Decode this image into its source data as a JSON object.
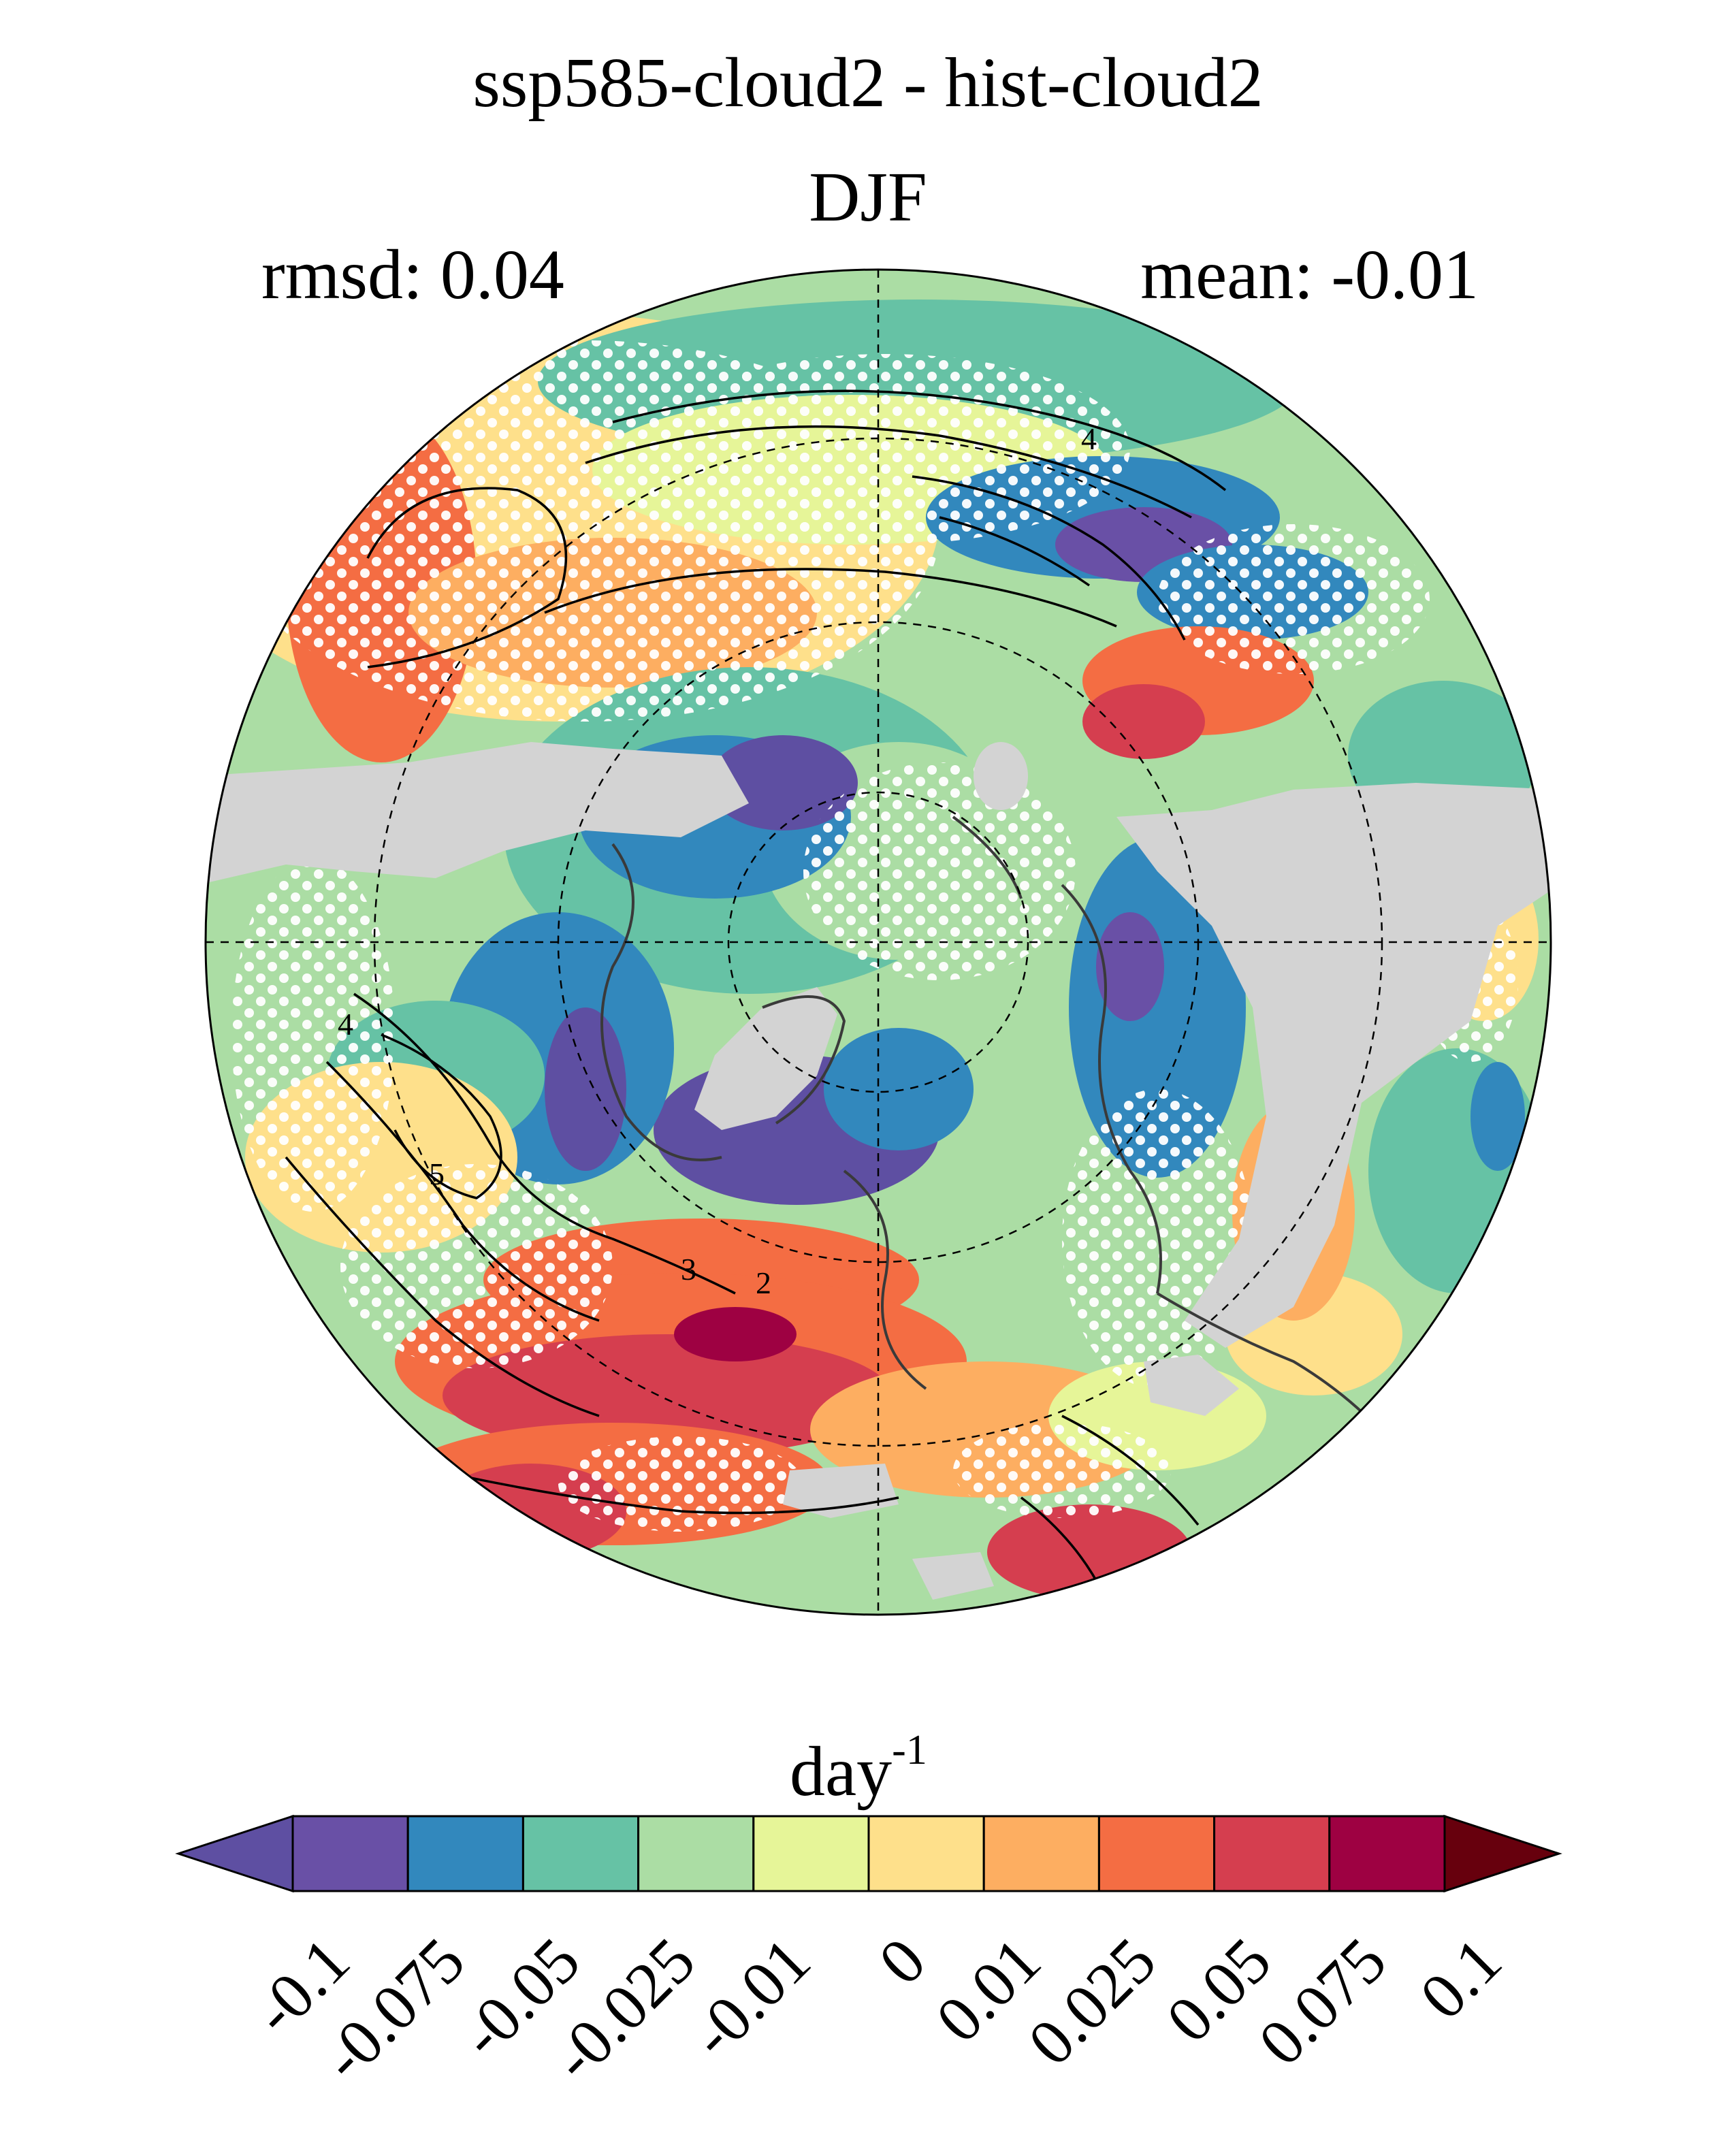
{
  "title": "ssp585-cloud2 - hist-cloud2",
  "season": "DJF",
  "rmsd_text": "rmsd: 0.04",
  "mean_text": "mean: -0.01",
  "colorbar": {
    "unit_base": "day",
    "unit_exponent": "-1",
    "levels": [
      "-0.1",
      "-0.075",
      "-0.05",
      "-0.025",
      "-0.01",
      "0",
      "0.01",
      "0.025",
      "0.05",
      "0.075",
      "0.1"
    ],
    "colors": [
      "#5e4fa2",
      "#6950a6",
      "#3288bd",
      "#66c2a5",
      "#abdda4",
      "#e6f598",
      "#fee08b",
      "#fdae61",
      "#f46d43",
      "#d53e4f",
      "#9e0142",
      "#67000d"
    ]
  },
  "map": {
    "projection": "north-polar-stereographic",
    "missing_color": "#d3d3d3",
    "stipple_color": "#ffffff",
    "contour_labels": [
      "4",
      "4",
      "5",
      "3",
      "2"
    ]
  }
}
